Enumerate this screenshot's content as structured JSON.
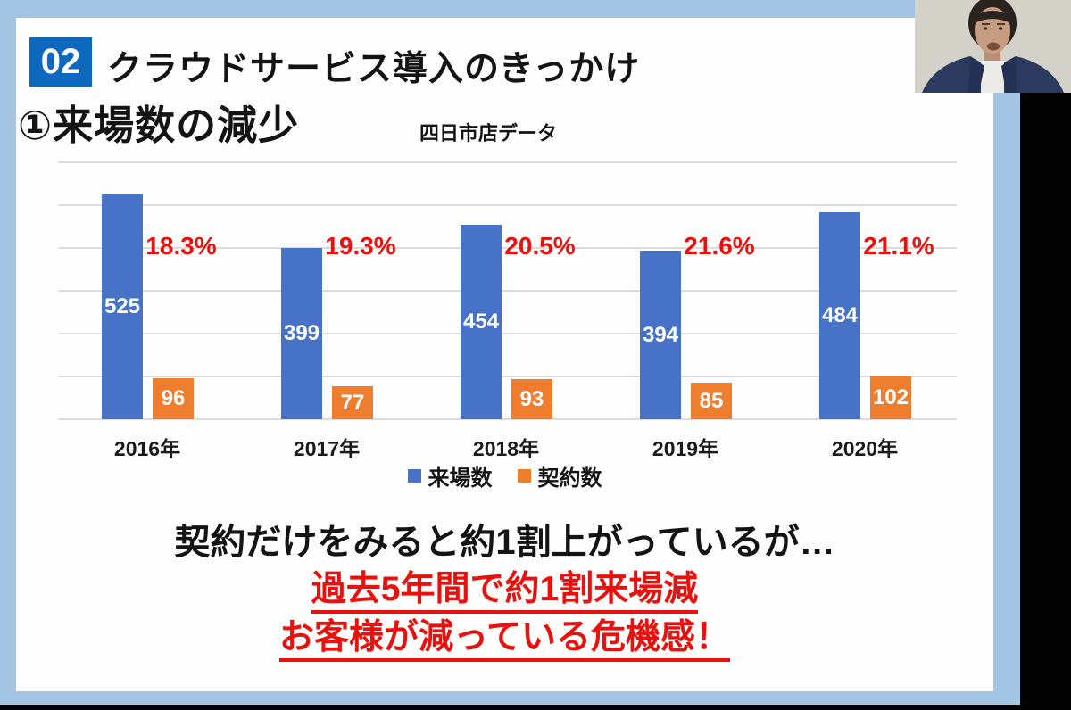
{
  "slide": {
    "badge": "02",
    "title": "クラウドサービス導入のきっかけ",
    "subtitle": "①来場数の減少"
  },
  "chart_data": {
    "type": "bar",
    "title": "四日市店データ",
    "categories": [
      "2016年",
      "2017年",
      "2018年",
      "2019年",
      "2020年"
    ],
    "series": [
      {
        "name": "来場数",
        "color": "#4673c8",
        "values": [
          525,
          399,
          454,
          394,
          484
        ]
      },
      {
        "name": "契約数",
        "color": "#ee7e2d",
        "values": [
          96,
          77,
          93,
          85,
          102
        ]
      }
    ],
    "annotations": [
      "18.3%",
      "19.3%",
      "20.5%",
      "21.6%",
      "21.1%"
    ],
    "ylim": [
      0,
      600
    ],
    "gridlines": 7,
    "grid": true,
    "legend_position": "bottom"
  },
  "conclusion": {
    "line1": "契約だけをみると約1割上がっているが…",
    "line2": "過去5年間で約1割来場減",
    "line3": "お客様が減っている危機感！"
  },
  "colors": {
    "badge_blue": "#0d68be",
    "frame_light_blue": "#a4c4e4",
    "bar_blue": "#4673c8",
    "bar_orange": "#ee7e2d",
    "accent_red": "#e8110d",
    "surround_black": "#030303"
  },
  "webcam": {
    "description": "presenter in navy blazer against light wall"
  }
}
